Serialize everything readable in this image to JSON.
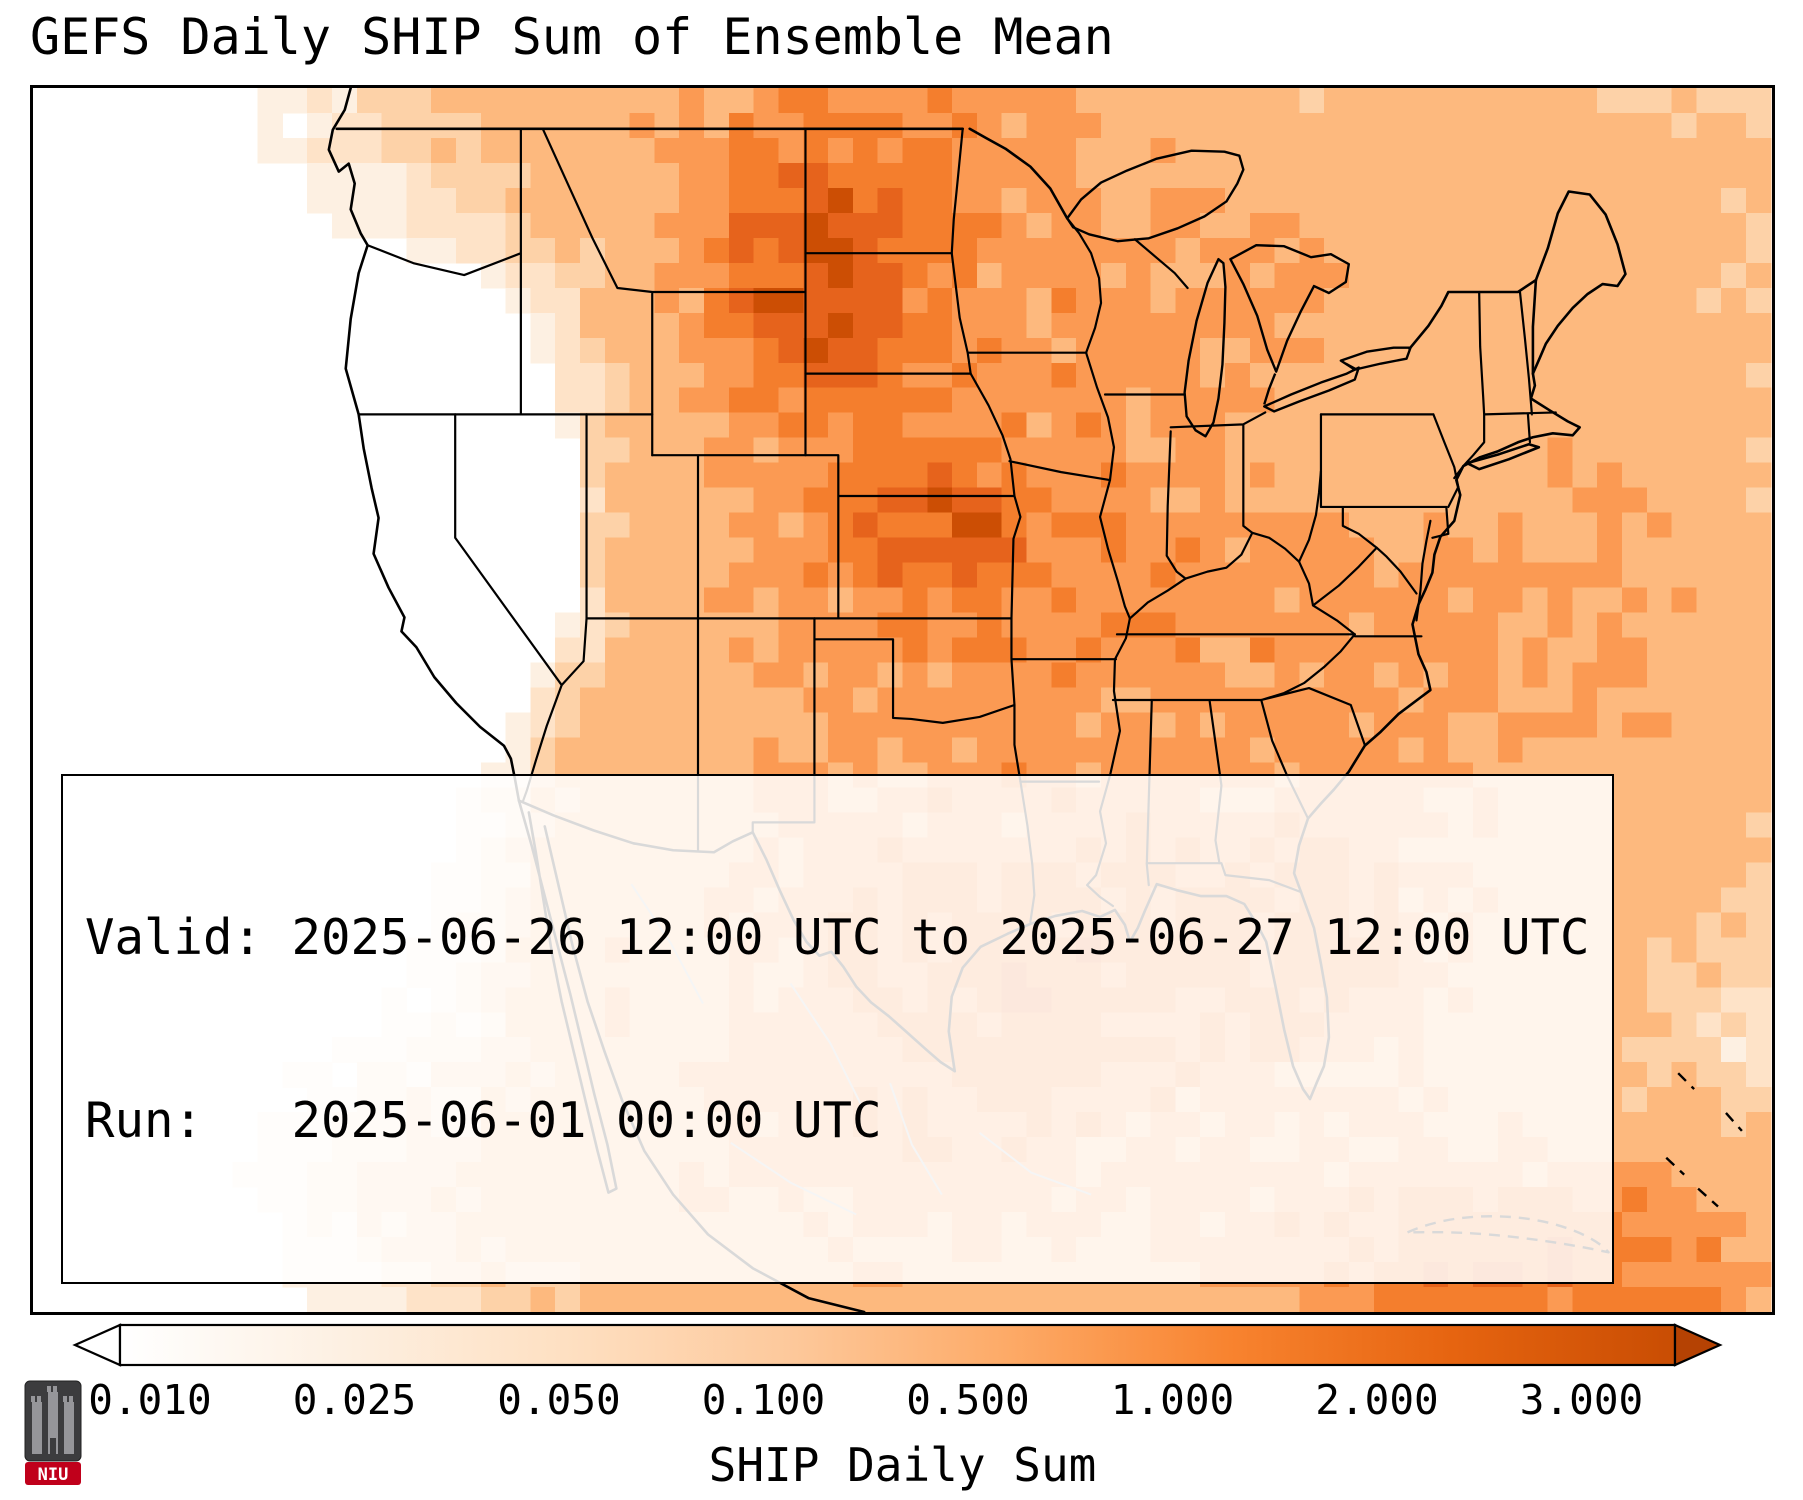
{
  "title": "GEFS Daily SHIP Sum of Ensemble Mean",
  "info_box": {
    "valid_line": "Valid: 2025-06-26 12:00 UTC to 2025-06-27 12:00 UTC",
    "run_line": "Run:   2025-06-01 00:00 UTC"
  },
  "colorbar": {
    "label": "SHIP Daily Sum",
    "ticks": [
      "0.010",
      "0.025",
      "0.050",
      "0.100",
      "0.500",
      "1.000",
      "2.000",
      "3.000"
    ],
    "gradient": [
      "#ffffff",
      "#fdf0e2",
      "#fee0c2",
      "#fdc99c",
      "#fdaa67",
      "#f8832f",
      "#e66410",
      "#c94d03"
    ],
    "arrow_left_color": "#ffffff",
    "arrow_right_color": "#b54203"
  },
  "logo": {
    "text": "NIU"
  },
  "map_data": {
    "type": "heatmap",
    "variable": "SHIP Daily Sum (ensemble mean, daily accumulated)",
    "region": "Continental United States, northern Mexico, southern Canada, Gulf of Mexico, western Atlantic",
    "levels": [
      0.01,
      0.025,
      0.05,
      0.1,
      0.5,
      1.0,
      2.0,
      3.0
    ],
    "palette": [
      "#ffffff",
      "#fdf0e2",
      "#fee3c8",
      "#fdd2a8",
      "#fdb97e",
      "#fb9a53",
      "#f47e2d",
      "#e6631c",
      "#cc4e04"
    ],
    "grid": {
      "cols": 70,
      "rows": 49
    },
    "maxima": [
      {
        "location": "western Dakotas / Nebraska",
        "value": "2-3+"
      },
      {
        "location": "northeast Kansas / northwest Missouri",
        "value": "2-3"
      },
      {
        "location": "far southeast corner (Caribbean)",
        "value": "1-2"
      }
    ],
    "blobs": [
      {
        "fx": 0.452,
        "fy": 0.155,
        "rx": 0.055,
        "ry": 0.095,
        "v": 2.7
      },
      {
        "fx": 0.522,
        "fy": 0.357,
        "rx": 0.042,
        "ry": 0.05,
        "v": 2.2
      },
      {
        "fx": 0.52,
        "fy": 0.34,
        "rx": 0.15,
        "ry": 0.26,
        "v": 0.85
      },
      {
        "fx": 0.47,
        "fy": 0.02,
        "rx": 0.17,
        "ry": 0.09,
        "v": 0.55
      },
      {
        "fx": 0.532,
        "fy": 0.716,
        "rx": 0.14,
        "ry": 0.13,
        "v": 0.75
      },
      {
        "fx": 0.646,
        "fy": 0.733,
        "rx": 0.17,
        "ry": 0.13,
        "v": 0.85
      },
      {
        "fx": 0.74,
        "fy": 0.667,
        "rx": 0.08,
        "ry": 0.12,
        "v": 0.6
      },
      {
        "fx": 0.85,
        "fy": 0.97,
        "rx": 0.14,
        "ry": 0.09,
        "v": 1.6
      },
      {
        "fx": 0.671,
        "fy": 0.416,
        "rx": 0.11,
        "ry": 0.13,
        "v": 0.45
      },
      {
        "fx": 0.797,
        "fy": 0.467,
        "rx": 0.09,
        "ry": 0.11,
        "v": 0.45
      },
      {
        "fx": 0.848,
        "fy": 0.2,
        "rx": 0.13,
        "ry": 0.14,
        "v": 0.18
      },
      {
        "fx": 0.671,
        "fy": 0.15,
        "rx": 0.11,
        "ry": 0.09,
        "v": 0.4
      },
      {
        "fx": 0.324,
        "fy": 0.716,
        "rx": 0.03,
        "ry": 0.11,
        "v": 0.3
      },
      {
        "fx": 0.368,
        "fy": 0.55,
        "rx": 0.06,
        "ry": 0.08,
        "v": 0.12
      },
      {
        "fx": 0.482,
        "fy": 0.9,
        "rx": 0.18,
        "ry": 0.1,
        "v": 0.55
      },
      {
        "fx": 0.91,
        "fy": 0.433,
        "rx": 0.09,
        "ry": 0.22,
        "v": 0.4
      },
      {
        "fx": 0.873,
        "fy": 0.05,
        "rx": 0.12,
        "ry": 0.07,
        "v": 0.2
      },
      {
        "fx": 0.27,
        "fy": 0.35,
        "rx": 0.08,
        "ry": 0.15,
        "v": -0.15
      }
    ]
  }
}
